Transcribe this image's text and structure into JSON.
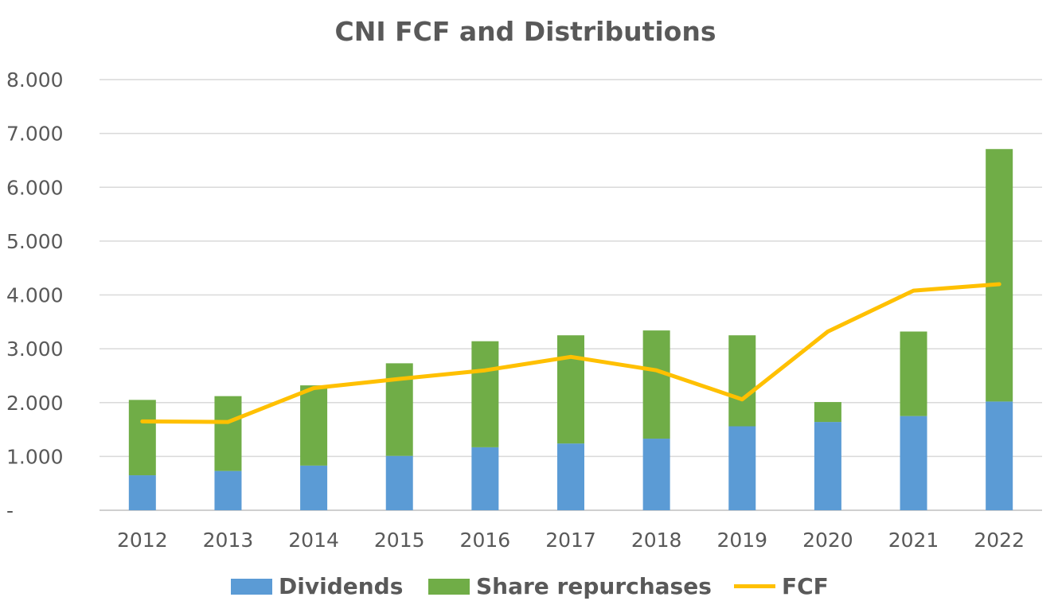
{
  "chart_data": {
    "type": "bar",
    "title": "CNI FCF and Distributions",
    "categories": [
      "2012",
      "2013",
      "2014",
      "2015",
      "2016",
      "2017",
      "2018",
      "2019",
      "2020",
      "2021",
      "2022"
    ],
    "ylim": [
      0,
      8000
    ],
    "yticks": [
      0,
      1000,
      2000,
      3000,
      4000,
      5000,
      6000,
      7000,
      8000
    ],
    "ytick_labels": [
      "-",
      "1.000",
      "2.000",
      "3.000",
      "4.000",
      "5.000",
      "6.000",
      "7.000",
      "8.000"
    ],
    "grid": true,
    "stacked": true,
    "legend_position": "bottom",
    "series": [
      {
        "name": "Dividends",
        "type": "bar",
        "color": "#5b9bd5",
        "values": [
          650,
          730,
          830,
          1010,
          1170,
          1240,
          1330,
          1560,
          1640,
          1750,
          2020
        ]
      },
      {
        "name": "Share repurchases",
        "type": "bar",
        "color": "#70ad47",
        "values": [
          1400,
          1390,
          1490,
          1720,
          1970,
          2010,
          2010,
          1690,
          370,
          1570,
          4690
        ]
      },
      {
        "name": "FCF",
        "type": "line",
        "color": "#ffc000",
        "values": [
          1650,
          1640,
          2270,
          2440,
          2600,
          2850,
          2600,
          2060,
          3320,
          4080,
          4200
        ]
      }
    ]
  }
}
